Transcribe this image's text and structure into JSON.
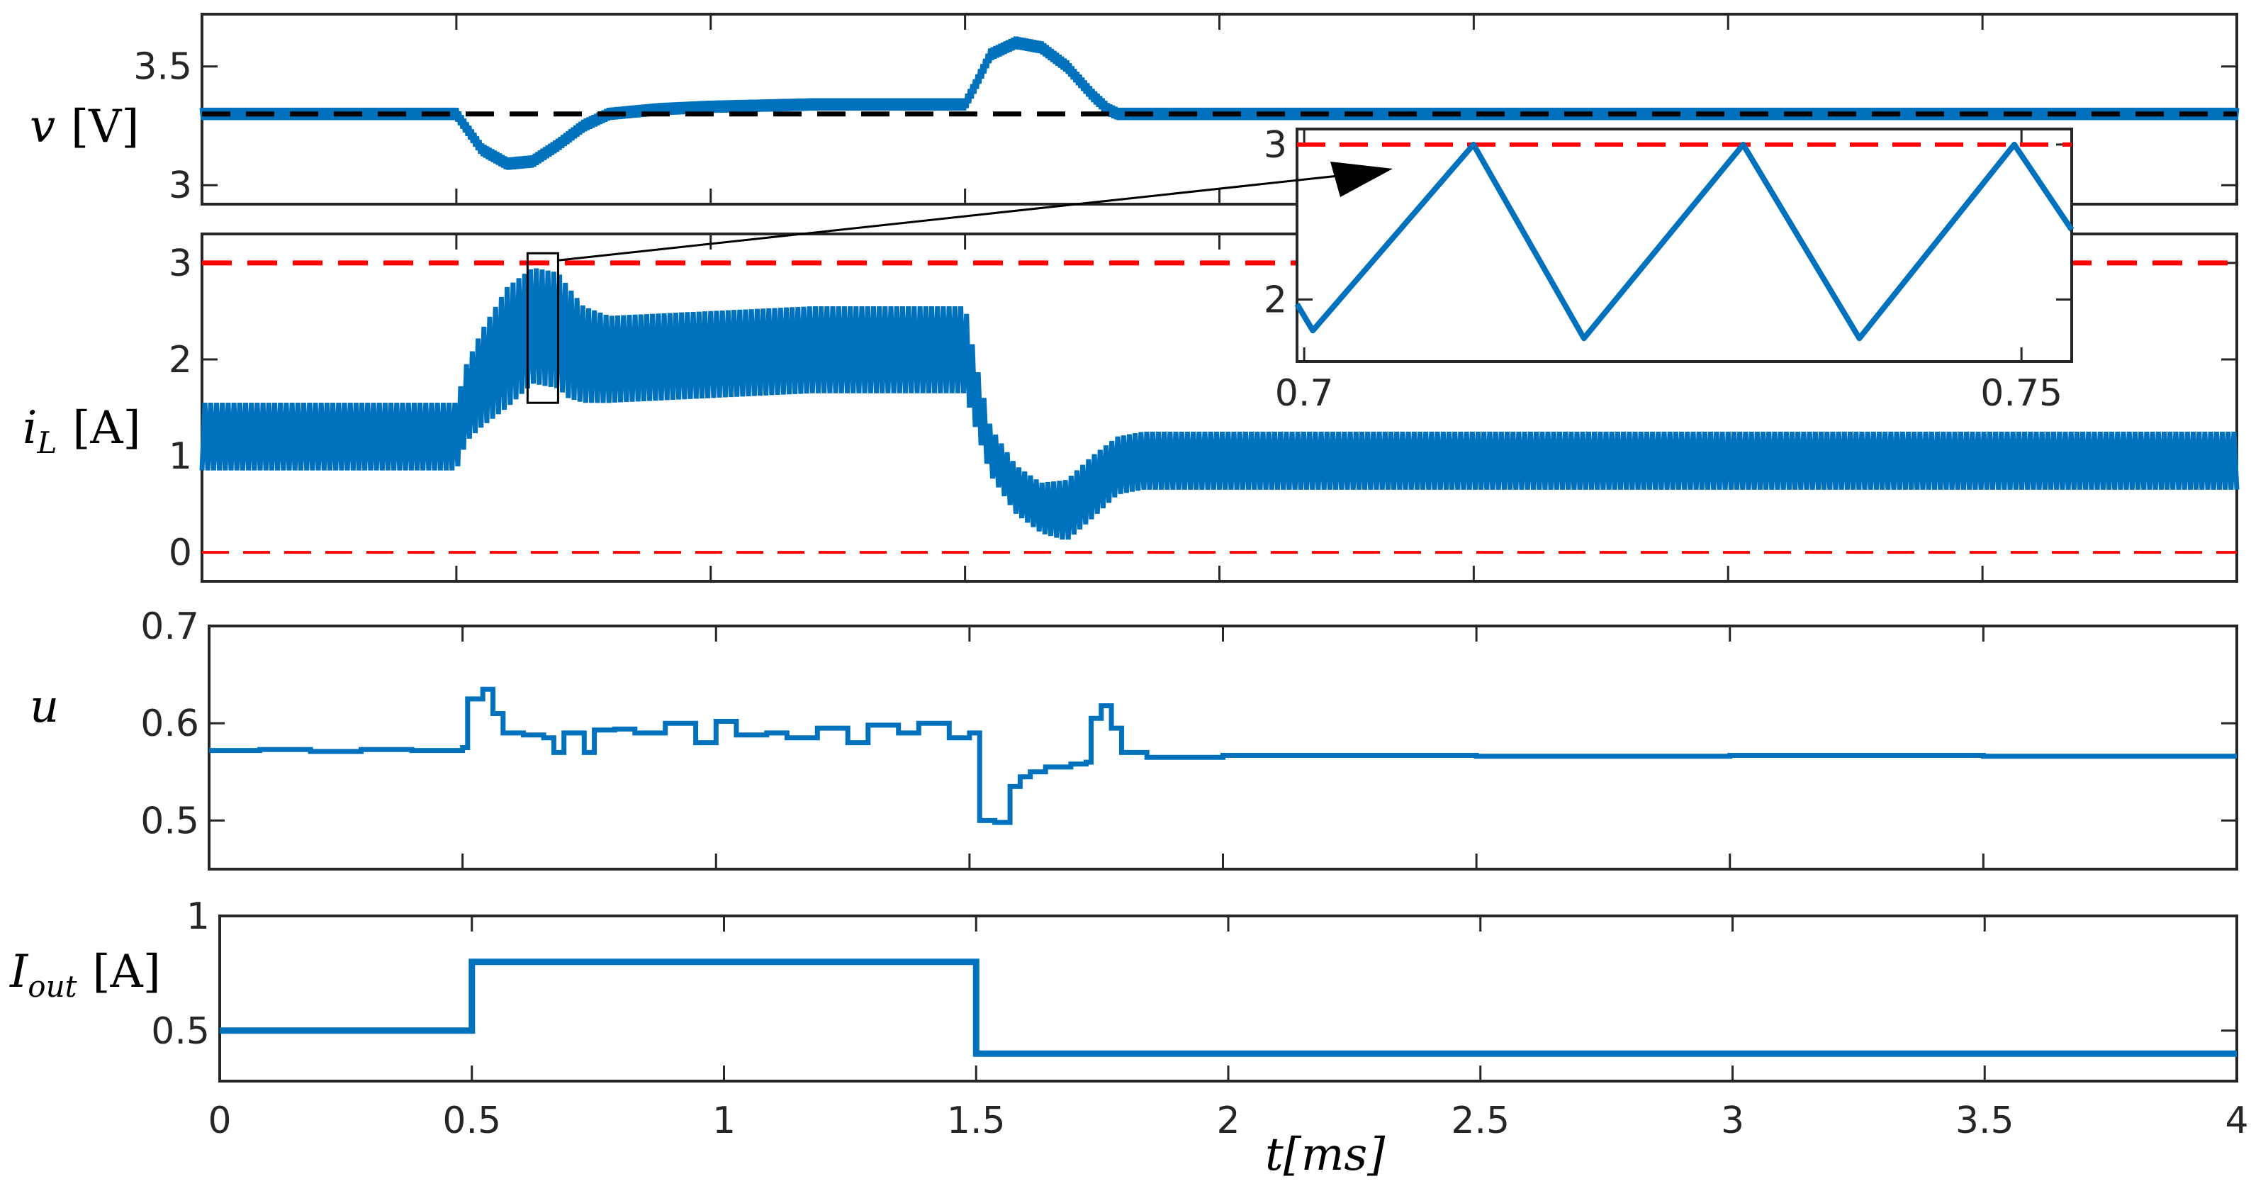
{
  "colors": {
    "signal": "#0072BD",
    "reference": "#000000",
    "limit": "#FF0000",
    "axes": "#262626"
  },
  "chart_data": [
    {
      "id": "voltage",
      "type": "line",
      "ylabel": {
        "main": "v",
        "unit": "[V]"
      },
      "xlim": [
        0,
        4
      ],
      "ylim": [
        2.92,
        3.72
      ],
      "yticks": [
        3,
        3.5
      ],
      "yticklabels": [
        "3",
        "3.5"
      ],
      "reference": {
        "value": 3.3,
        "style": "dashed",
        "color": "#000000"
      },
      "series": [
        {
          "ripple": 0.025,
          "x": [
            0,
            0.5,
            0.52,
            0.55,
            0.6,
            0.65,
            0.7,
            0.75,
            0.8,
            0.9,
            1.0,
            1.2,
            1.4,
            1.5,
            1.52,
            1.55,
            1.6,
            1.65,
            1.7,
            1.75,
            1.78,
            1.8,
            4
          ],
          "y": [
            3.3,
            3.3,
            3.24,
            3.15,
            3.09,
            3.1,
            3.17,
            3.25,
            3.3,
            3.32,
            3.33,
            3.34,
            3.34,
            3.34,
            3.42,
            3.55,
            3.6,
            3.58,
            3.5,
            3.38,
            3.32,
            3.3,
            3.3
          ]
        }
      ]
    },
    {
      "id": "current",
      "type": "line",
      "ylabel": {
        "main": "i",
        "sub": "L",
        "unit": "[A]"
      },
      "xlim": [
        0,
        4
      ],
      "ylim": [
        -0.3,
        3.3
      ],
      "yticks": [
        0,
        1,
        2,
        3
      ],
      "yticklabels": [
        "0",
        "1",
        "2",
        "3"
      ],
      "limits": [
        3,
        0
      ],
      "series": [
        {
          "x": [
            0,
            0.5,
            0.52,
            0.55,
            0.6,
            0.65,
            0.7,
            0.72,
            0.75,
            0.8,
            1.0,
            1.2,
            1.4,
            1.5,
            1.52,
            1.55,
            1.6,
            1.65,
            1.7,
            1.75,
            1.8,
            1.85,
            4
          ],
          "lower": [
            0.85,
            0.85,
            1.15,
            1.3,
            1.5,
            1.75,
            1.7,
            1.6,
            1.55,
            1.55,
            1.6,
            1.65,
            1.65,
            1.65,
            1.3,
            0.8,
            0.4,
            0.2,
            0.12,
            0.35,
            0.6,
            0.65,
            0.65
          ],
          "upper": [
            1.55,
            1.55,
            1.95,
            2.3,
            2.75,
            2.95,
            2.9,
            2.75,
            2.55,
            2.45,
            2.5,
            2.55,
            2.55,
            2.55,
            2.0,
            1.3,
            0.9,
            0.72,
            0.75,
            1.0,
            1.2,
            1.25,
            1.25
          ]
        }
      ],
      "zoom_box": {
        "x0": 0.64,
        "x1": 0.7,
        "y0": 1.55,
        "y1": 3.1
      }
    },
    {
      "id": "inset",
      "type": "line",
      "xlim": [
        0.6995,
        0.7535
      ],
      "ylim": [
        1.6,
        3.1
      ],
      "xticks": [
        0.7,
        0.75
      ],
      "xticklabels": [
        "0.7",
        "0.75"
      ],
      "yticks": [
        2,
        3
      ],
      "yticklabels": [
        "2",
        "3"
      ],
      "limit": 3,
      "series": [
        {
          "x": [
            0.6995,
            0.7006,
            0.7118,
            0.7195,
            0.7306,
            0.7387,
            0.7495,
            0.7535
          ],
          "y": [
            1.97,
            1.8,
            3.0,
            1.75,
            3.0,
            1.75,
            3.0,
            2.45
          ]
        }
      ]
    },
    {
      "id": "duty",
      "type": "line",
      "ylabel": {
        "main": "u"
      },
      "xlim": [
        0,
        4
      ],
      "ylim": [
        0.45,
        0.7
      ],
      "yticks": [
        0.5,
        0.6,
        0.7
      ],
      "yticklabels": [
        "0.5",
        "0.6",
        "0.7"
      ],
      "series": [
        {
          "x": [
            0,
            0.1,
            0.2,
            0.3,
            0.4,
            0.5,
            0.51,
            0.54,
            0.56,
            0.58,
            0.62,
            0.66,
            0.68,
            0.7,
            0.74,
            0.76,
            0.8,
            0.84,
            0.9,
            0.96,
            1.0,
            1.04,
            1.1,
            1.14,
            1.2,
            1.26,
            1.3,
            1.36,
            1.4,
            1.46,
            1.5,
            1.52,
            1.55,
            1.58,
            1.6,
            1.62,
            1.65,
            1.7,
            1.73,
            1.74,
            1.76,
            1.78,
            1.8,
            1.85,
            2.0,
            2.5,
            3.0,
            3.5,
            4.0
          ],
          "y": [
            0.572,
            0.573,
            0.571,
            0.573,
            0.572,
            0.575,
            0.625,
            0.635,
            0.61,
            0.59,
            0.588,
            0.585,
            0.57,
            0.59,
            0.57,
            0.593,
            0.594,
            0.59,
            0.6,
            0.58,
            0.602,
            0.588,
            0.59,
            0.585,
            0.595,
            0.58,
            0.598,
            0.59,
            0.6,
            0.585,
            0.59,
            0.5,
            0.498,
            0.535,
            0.545,
            0.55,
            0.555,
            0.558,
            0.56,
            0.605,
            0.618,
            0.595,
            0.57,
            0.565,
            0.567,
            0.566,
            0.567,
            0.566,
            0.566
          ]
        }
      ]
    },
    {
      "id": "load",
      "type": "line",
      "ylabel": {
        "main": "I",
        "sub": "out",
        "unit": "[A]"
      },
      "xlim": [
        0,
        4
      ],
      "ylim": [
        0.28,
        1.0
      ],
      "yticks": [
        0.5,
        1
      ],
      "yticklabels": [
        "0.5",
        "1"
      ],
      "xticks": [
        0,
        0.5,
        1,
        1.5,
        2,
        2.5,
        3,
        3.5,
        4
      ],
      "xticklabels": [
        "0",
        "0.5",
        "1",
        "1.5",
        "2",
        "2.5",
        "3",
        "3.5",
        "4"
      ],
      "xlabel": {
        "main": "t",
        "unit": "[ms]"
      },
      "series": [
        {
          "x": [
            0,
            0.5,
            0.5,
            1.5,
            1.5,
            4
          ],
          "y": [
            0.5,
            0.5,
            0.8,
            0.8,
            0.4,
            0.4
          ]
        }
      ]
    }
  ]
}
